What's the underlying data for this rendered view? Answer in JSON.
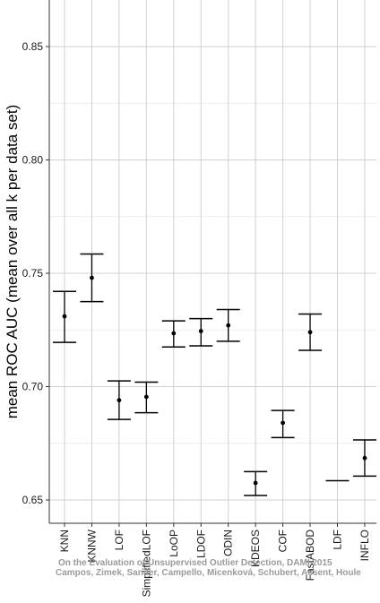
{
  "chart_data": {
    "type": "scatter",
    "subtype": "point-with-error-bars",
    "ylabel": "mean ROC AUC (mean over all k per data set)",
    "xlabel": "",
    "ylim": [
      0.64,
      0.87
    ],
    "yticks": [
      0.65,
      0.7,
      0.75,
      0.8,
      0.85
    ],
    "ytick_labels": [
      "0.65",
      "0.70",
      "0.75",
      "0.80",
      "0.85"
    ],
    "grid": true,
    "categories": [
      "KNN",
      "KNNW",
      "LOF",
      "SimplifiedLOF",
      "LoOP",
      "LDOF",
      "ODIN",
      "KDEOS",
      "COF",
      "FastABOD",
      "LDF",
      "INFLO"
    ],
    "points": [
      {
        "label": "KNN",
        "mean": 0.731,
        "low": 0.7195,
        "high": 0.742
      },
      {
        "label": "KNNW",
        "mean": 0.748,
        "low": 0.7375,
        "high": 0.7585
      },
      {
        "label": "LOF",
        "mean": 0.694,
        "low": 0.6855,
        "high": 0.7025
      },
      {
        "label": "SimplifiedLOF",
        "mean": 0.6955,
        "low": 0.6885,
        "high": 0.702
      },
      {
        "label": "LoOP",
        "mean": 0.7235,
        "low": 0.7175,
        "high": 0.729
      },
      {
        "label": "LDOF",
        "mean": 0.7245,
        "low": 0.718,
        "high": 0.73
      },
      {
        "label": "ODIN",
        "mean": 0.727,
        "low": 0.72,
        "high": 0.734
      },
      {
        "label": "KDEOS",
        "mean": 0.6575,
        "low": 0.652,
        "high": 0.6625
      },
      {
        "label": "COF",
        "mean": 0.684,
        "low": 0.6775,
        "high": 0.6895
      },
      {
        "label": "FastABOD",
        "mean": 0.724,
        "low": 0.716,
        "high": 0.732
      },
      {
        "label": "LDF",
        "mean": null,
        "low": 0.6585,
        "high": 0.6585
      },
      {
        "label": "INFLO",
        "mean": 0.6685,
        "low": 0.6605,
        "high": 0.6765
      }
    ],
    "watermark": [
      "On the Evaluation of Unsupervised Outlier Detection, DAMI 2015",
      "Campos, Zimek, Sander, Campello, Micenková, Schubert, Assent, Houle"
    ]
  }
}
